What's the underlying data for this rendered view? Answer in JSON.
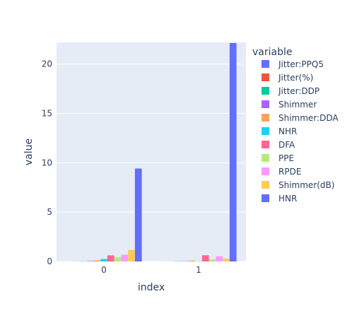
{
  "chart_data": {
    "type": "bar",
    "barmode": "group",
    "xlabel": "index",
    "ylabel": "value",
    "categories": [
      "0",
      "1"
    ],
    "ylim": [
      0,
      22.2
    ],
    "yticks": [
      0,
      5,
      10,
      15,
      20
    ],
    "grid": true,
    "legend": {
      "title": "variable",
      "position": "right"
    },
    "series": [
      {
        "name": "Jitter:PPQ5",
        "color": "#636efa",
        "values": [
          0.003,
          0.003
        ]
      },
      {
        "name": "Jitter(%)",
        "color": "#EF553B",
        "values": [
          0.006,
          0.006
        ]
      },
      {
        "name": "Jitter:DDP",
        "color": "#00cc96",
        "values": [
          0.019,
          0.019
        ]
      },
      {
        "name": "Shimmer",
        "color": "#ab63fa",
        "values": [
          0.04,
          0.03
        ]
      },
      {
        "name": "Shimmer:DDA",
        "color": "#FFA15A",
        "values": [
          0.12,
          0.09
        ]
      },
      {
        "name": "NHR",
        "color": "#19d3f3",
        "values": [
          0.25,
          0.02
        ]
      },
      {
        "name": "DFA",
        "color": "#FF6692",
        "values": [
          0.62,
          0.63
        ]
      },
      {
        "name": "PPE",
        "color": "#B6E880",
        "values": [
          0.43,
          0.2
        ]
      },
      {
        "name": "RPDE",
        "color": "#FF97FF",
        "values": [
          0.68,
          0.53
        ]
      },
      {
        "name": "Shimmer(dB)",
        "color": "#FECB52",
        "values": [
          1.17,
          0.28
        ]
      },
      {
        "name": "HNR",
        "color": "#636efa",
        "values": [
          9.42,
          22.14
        ]
      }
    ]
  }
}
